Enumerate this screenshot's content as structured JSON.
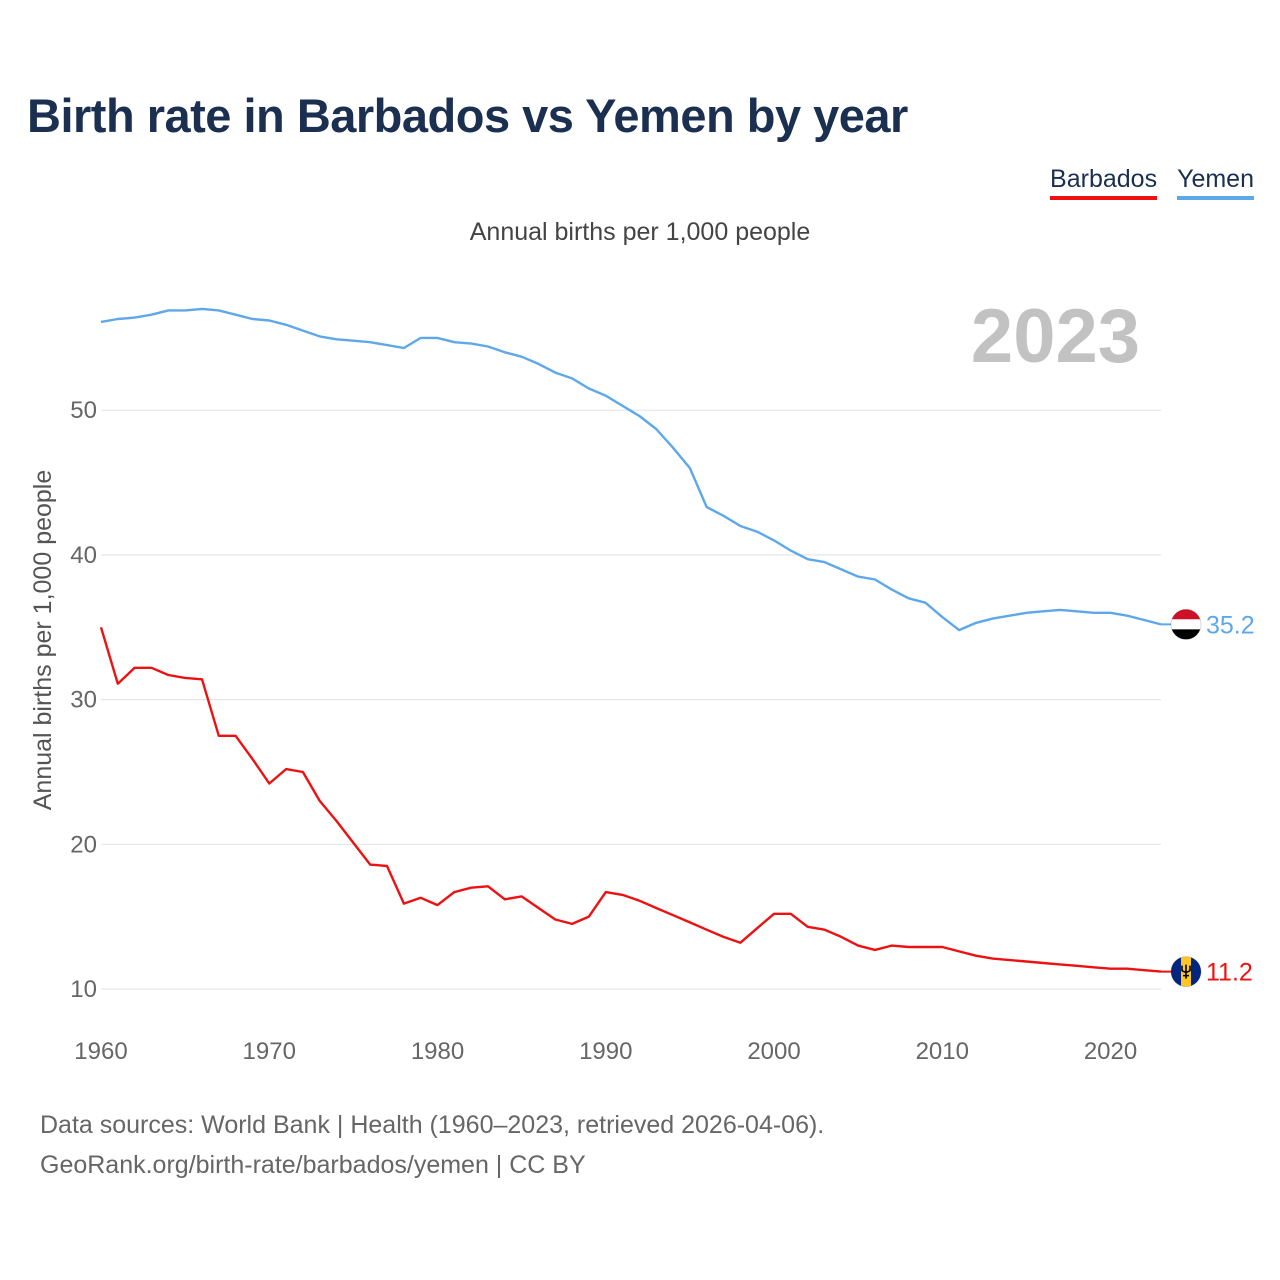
{
  "title": "Birth rate in Barbados vs Yemen by year",
  "legend": {
    "barbados": "Barbados",
    "yemen": "Yemen"
  },
  "year_watermark": "2023",
  "footer": {
    "line1": "Data sources: World Bank | Health (1960–2023, retrieved 2026-04-06).",
    "line2": "GeoRank.org/birth-rate/barbados/yemen | CC BY"
  },
  "colors": {
    "barbados": "#ee1111",
    "yemen": "#5ea8ea",
    "grid": "#e6e6e6",
    "axis_text": "#666666",
    "watermark": "#c2c2c2"
  },
  "chart_data": {
    "type": "line",
    "title": "Birth rate in Barbados vs Yemen by year",
    "subtitle": "Annual births per 1,000 people",
    "xlabel": "",
    "ylabel": "Annual births per 1,000 people",
    "xlim": [
      1960,
      2023
    ],
    "ylim": [
      10,
      56.9
    ],
    "x_ticks": [
      1960,
      1970,
      1980,
      1990,
      2000,
      2010,
      2020
    ],
    "y_ticks": [
      10,
      20,
      30,
      40,
      50
    ],
    "grid": true,
    "x": [
      1960,
      1961,
      1962,
      1963,
      1964,
      1965,
      1966,
      1967,
      1968,
      1969,
      1970,
      1971,
      1972,
      1973,
      1974,
      1975,
      1976,
      1977,
      1978,
      1979,
      1980,
      1981,
      1982,
      1983,
      1984,
      1985,
      1986,
      1987,
      1988,
      1989,
      1990,
      1991,
      1992,
      1993,
      1994,
      1995,
      1996,
      1997,
      1998,
      1999,
      2000,
      2001,
      2002,
      2003,
      2004,
      2005,
      2006,
      2007,
      2008,
      2009,
      2010,
      2011,
      2012,
      2013,
      2014,
      2015,
      2016,
      2017,
      2018,
      2019,
      2020,
      2021,
      2022,
      2023
    ],
    "series": [
      {
        "name": "Barbados",
        "end_label": "11.2",
        "values": [
          35.0,
          31.1,
          32.2,
          32.2,
          31.7,
          31.5,
          31.4,
          27.5,
          27.5,
          25.9,
          24.2,
          25.2,
          25.0,
          23.0,
          21.6,
          20.1,
          18.6,
          18.5,
          15.9,
          16.3,
          15.8,
          16.7,
          17.0,
          17.1,
          16.2,
          16.4,
          15.6,
          14.8,
          14.5,
          15.0,
          16.7,
          16.5,
          16.1,
          15.6,
          15.1,
          14.6,
          14.1,
          13.6,
          13.2,
          14.2,
          15.2,
          15.2,
          14.3,
          14.1,
          13.6,
          13.0,
          12.7,
          13.0,
          12.9,
          12.9,
          12.9,
          12.6,
          12.3,
          12.1,
          12.0,
          11.9,
          11.8,
          11.7,
          11.6,
          11.5,
          11.4,
          11.4,
          11.3,
          11.2
        ]
      },
      {
        "name": "Yemen",
        "end_label": "35.2",
        "values": [
          56.1,
          56.3,
          56.4,
          56.6,
          56.9,
          56.9,
          57.0,
          56.9,
          56.6,
          56.3,
          56.2,
          55.9,
          55.5,
          55.1,
          54.9,
          54.8,
          54.7,
          54.5,
          54.3,
          55.0,
          55.0,
          54.7,
          54.6,
          54.4,
          54.0,
          53.7,
          53.2,
          52.6,
          52.2,
          51.5,
          51.0,
          50.3,
          49.6,
          48.7,
          47.4,
          46.0,
          43.3,
          42.7,
          42.0,
          41.6,
          41.0,
          40.3,
          39.7,
          39.5,
          39.0,
          38.5,
          38.3,
          37.6,
          37.0,
          36.7,
          35.7,
          34.8,
          35.3,
          35.6,
          35.8,
          36.0,
          36.1,
          36.2,
          36.1,
          36.0,
          36.0,
          35.8,
          35.5,
          35.2
        ]
      }
    ]
  }
}
